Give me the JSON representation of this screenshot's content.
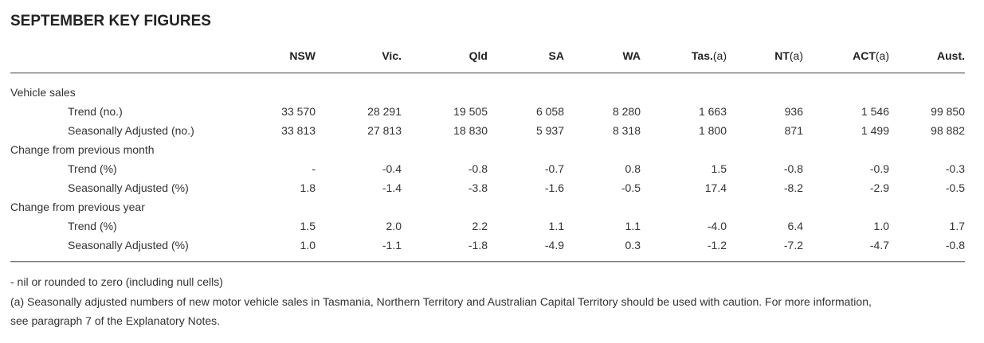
{
  "title": "SEPTEMBER KEY FIGURES",
  "columns": [
    {
      "name": "NSW",
      "suffix": ""
    },
    {
      "name": "Vic.",
      "suffix": ""
    },
    {
      "name": "Qld",
      "suffix": ""
    },
    {
      "name": "SA",
      "suffix": ""
    },
    {
      "name": "WA",
      "suffix": ""
    },
    {
      "name": "Tas.",
      "suffix": "(a)"
    },
    {
      "name": "NT",
      "suffix": "(a)"
    },
    {
      "name": "ACT",
      "suffix": "(a)"
    },
    {
      "name": "Aust.",
      "suffix": ""
    }
  ],
  "rows": [
    {
      "label": "Vehicle sales",
      "level": 0,
      "values": []
    },
    {
      "label": "Trend (no.)",
      "level": 1,
      "values": [
        "33 570",
        "28 291",
        "19 505",
        "6 058",
        "8 280",
        "1 663",
        "936",
        "1 546",
        "99 850"
      ]
    },
    {
      "label": "Seasonally Adjusted (no.)",
      "level": 1,
      "values": [
        "33 813",
        "27 813",
        "18 830",
        "5 937",
        "8 318",
        "1 800",
        "871",
        "1 499",
        "98 882"
      ]
    },
    {
      "label": "Change from previous month",
      "level": 0,
      "values": []
    },
    {
      "label": "Trend (%)",
      "level": 1,
      "values": [
        "-",
        "-0.4",
        "-0.8",
        "-0.7",
        "0.8",
        "1.5",
        "-0.8",
        "-0.9",
        "-0.3"
      ]
    },
    {
      "label": "Seasonally Adjusted (%)",
      "level": 1,
      "values": [
        "1.8",
        "-1.4",
        "-3.8",
        "-1.6",
        "-0.5",
        "17.4",
        "-8.2",
        "-2.9",
        "-0.5"
      ]
    },
    {
      "label": "Change from previous year",
      "level": 0,
      "values": []
    },
    {
      "label": "Trend (%)",
      "level": 1,
      "values": [
        "1.5",
        "2.0",
        "2.2",
        "1.1",
        "1.1",
        "-4.0",
        "6.4",
        "1.0",
        "1.7"
      ]
    },
    {
      "label": "Seasonally Adjusted (%)",
      "level": 1,
      "values": [
        "1.0",
        "-1.1",
        "-1.8",
        "-4.9",
        "0.3",
        "-1.2",
        "-7.2",
        "-4.7",
        "-0.8"
      ]
    }
  ],
  "notes": [
    "- nil or rounded to zero (including null cells)",
    "(a) Seasonally adjusted numbers of new motor vehicle sales in Tasmania, Northern Territory and Australian Capital Territory should be used with caution. For more information,",
    "see paragraph 7 of the Explanatory Notes."
  ]
}
